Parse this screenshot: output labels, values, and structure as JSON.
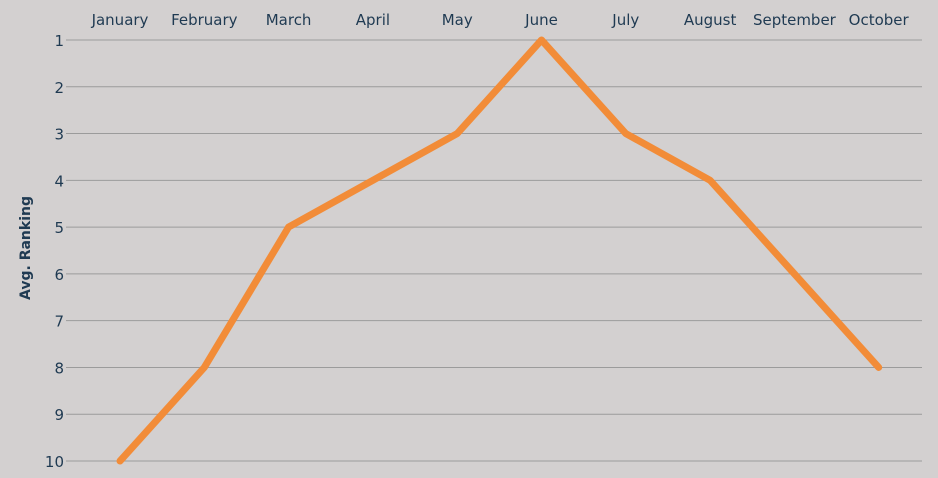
{
  "chart_data": {
    "type": "line",
    "categories": [
      "January",
      "February",
      "March",
      "April",
      "May",
      "June",
      "July",
      "August",
      "September",
      "October"
    ],
    "series": [
      {
        "values": [
          10,
          8,
          5,
          4,
          3,
          1,
          3,
          4,
          6,
          8
        ]
      }
    ],
    "ylabel": "Avg. Ranking",
    "xlabel": "",
    "ylim": [
      1,
      10
    ],
    "yticks": [
      1,
      2,
      3,
      4,
      5,
      6,
      7,
      8,
      9,
      10
    ],
    "y_inverted": true,
    "x_axis_position": "top",
    "grid": true,
    "legend": false,
    "colors": {
      "line": "#f28c38",
      "grid": "#9b9b9b",
      "text": "#1f3a52",
      "background": "#d3d0d0"
    }
  }
}
